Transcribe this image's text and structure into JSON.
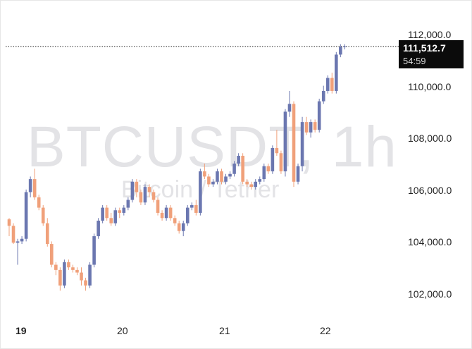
{
  "watermark": {
    "symbol": "BTCUSDT, 1h",
    "description": "Bitcoin / Tether"
  },
  "price_label": {
    "value": "111,512.7",
    "countdown": "54:59"
  },
  "y_axis_labels": [
    "112,000.0",
    "110,000.0",
    "108,000.0",
    "106,000.0",
    "104,000.0",
    "102,000.0"
  ],
  "x_axis_labels": [
    "19",
    "20",
    "21",
    "22"
  ],
  "colors": {
    "up": "#6b77b0",
    "down": "#f0a07a",
    "price_line": "#222222"
  },
  "chart_data": {
    "type": "candlestick",
    "y_range": [
      101000,
      113000
    ],
    "x_labels": [
      "19",
      "20",
      "21",
      "22"
    ],
    "last_price": 111512.7,
    "candles": [
      [
        104850,
        104600,
        104900,
        104200
      ],
      [
        104600,
        103950,
        104700,
        103900
      ],
      [
        103950,
        104000,
        104100,
        103100
      ],
      [
        104000,
        104100,
        104200,
        103900
      ],
      [
        104100,
        105900,
        106000,
        104000
      ],
      [
        105900,
        106400,
        106500,
        105700
      ],
      [
        106400,
        105700,
        106800,
        105600
      ],
      [
        105700,
        105300,
        105800,
        105200
      ],
      [
        105300,
        104700,
        105400,
        104600
      ],
      [
        104700,
        103900,
        104900,
        103800
      ],
      [
        103900,
        103100,
        104000,
        103000
      ],
      [
        103100,
        102900,
        103200,
        102700
      ],
      [
        102900,
        102300,
        103000,
        102100
      ],
      [
        102300,
        103200,
        103300,
        102200
      ],
      [
        103200,
        103000,
        103300,
        102900
      ],
      [
        103000,
        102900,
        103100,
        102800
      ],
      [
        102900,
        102800,
        103000,
        102700
      ],
      [
        102800,
        102500,
        103000,
        102300
      ],
      [
        102500,
        102300,
        102600,
        102100
      ],
      [
        102300,
        103100,
        103200,
        102200
      ],
      [
        103100,
        104200,
        104300,
        103000
      ],
      [
        104200,
        104800,
        104900,
        104100
      ],
      [
        104800,
        105300,
        105400,
        104700
      ],
      [
        105300,
        104900,
        105400,
        104800
      ],
      [
        104900,
        104700,
        105100,
        104600
      ],
      [
        104700,
        105200,
        105300,
        104600
      ],
      [
        105200,
        105100,
        105300,
        104900
      ],
      [
        105100,
        105300,
        105400,
        105000
      ],
      [
        105300,
        105600,
        105700,
        105200
      ],
      [
        105600,
        106300,
        106400,
        105500
      ],
      [
        106300,
        105900,
        106400,
        105700
      ],
      [
        105900,
        105500,
        106000,
        105400
      ],
      [
        105500,
        106100,
        106200,
        105400
      ],
      [
        106100,
        105900,
        106200,
        105700
      ],
      [
        105900,
        105600,
        106000,
        105500
      ],
      [
        105600,
        105100,
        105700,
        105000
      ],
      [
        105100,
        104900,
        105200,
        104800
      ],
      [
        104900,
        105300,
        105400,
        104800
      ],
      [
        105300,
        104900,
        105400,
        104800
      ],
      [
        104900,
        104700,
        105000,
        104600
      ],
      [
        104700,
        104400,
        104800,
        104300
      ],
      [
        104400,
        104700,
        104800,
        104200
      ],
      [
        104700,
        105300,
        105400,
        104600
      ],
      [
        105300,
        105400,
        105500,
        105200
      ],
      [
        105400,
        105100,
        105600,
        105000
      ],
      [
        105100,
        106700,
        106800,
        105000
      ],
      [
        106700,
        106500,
        107000,
        106400
      ],
      [
        106500,
        106200,
        106600,
        106100
      ],
      [
        106200,
        106300,
        106400,
        106100
      ],
      [
        106300,
        106700,
        106800,
        106200
      ],
      [
        106700,
        106300,
        106800,
        106200
      ],
      [
        106300,
        106500,
        106600,
        106200
      ],
      [
        106500,
        106600,
        106700,
        106400
      ],
      [
        106600,
        107000,
        107100,
        106500
      ],
      [
        107000,
        107300,
        107400,
        106900
      ],
      [
        107300,
        106300,
        107400,
        106200
      ],
      [
        106300,
        106200,
        106400,
        106100
      ],
      [
        106200,
        106100,
        106300,
        106000
      ],
      [
        106100,
        106300,
        106400,
        106000
      ],
      [
        106300,
        106400,
        106500,
        106200
      ],
      [
        106400,
        106900,
        107000,
        106300
      ],
      [
        106900,
        106700,
        107000,
        106600
      ],
      [
        106700,
        107600,
        107700,
        106600
      ],
      [
        107600,
        107400,
        108300,
        107300
      ],
      [
        107400,
        106700,
        107500,
        106600
      ],
      [
        106700,
        109000,
        109100,
        106500
      ],
      [
        109000,
        109300,
        109800,
        108800
      ],
      [
        109300,
        106300,
        109400,
        106100
      ],
      [
        106300,
        106900,
        107000,
        106200
      ],
      [
        106900,
        108600,
        108800,
        106700
      ],
      [
        108600,
        108200,
        108800,
        108100
      ],
      [
        108200,
        108600,
        108700,
        108000
      ],
      [
        108600,
        108300,
        108700,
        108200
      ],
      [
        108300,
        109400,
        109500,
        108200
      ],
      [
        109400,
        109800,
        110000,
        109300
      ],
      [
        109800,
        110300,
        110400,
        109700
      ],
      [
        110300,
        109800,
        110500,
        109700
      ],
      [
        109800,
        111200,
        111300,
        109700
      ],
      [
        111200,
        111500,
        111600,
        111100
      ],
      [
        111500,
        111512.7,
        111600,
        111400
      ]
    ]
  }
}
